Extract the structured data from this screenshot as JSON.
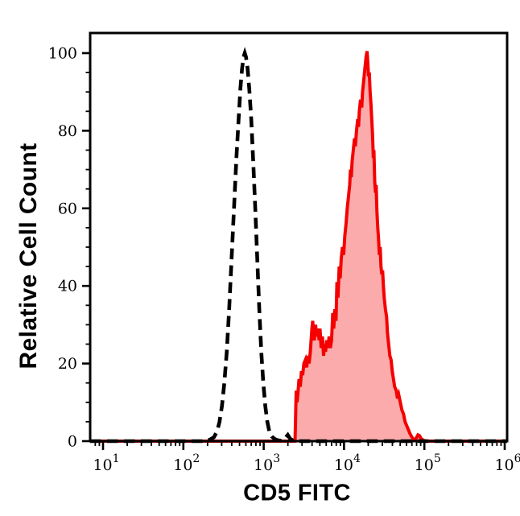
{
  "colors": {
    "background": "#ffffff",
    "axis": "#000000",
    "stained_line": "#f40000",
    "stained_fill": "#fbabab",
    "control_line": "#000000"
  },
  "chart_data": {
    "type": "area",
    "subtype": "flow-cytometry-histogram-overlay",
    "title": "",
    "xlabel": "CD5 FITC",
    "ylabel": "Relative Cell Count",
    "x_axis": {
      "scale": "log10",
      "min_exponent": 1,
      "max_exponent": 6,
      "tick_base": "10",
      "tick_exponents": [
        1,
        2,
        3,
        4,
        5,
        6
      ],
      "minor_tick_multiples": [
        2,
        3,
        4,
        5,
        6,
        7,
        8,
        9
      ]
    },
    "y_axis": {
      "min": 0,
      "max": 100,
      "major_ticks": [
        0,
        20,
        40,
        60,
        80,
        100
      ],
      "minor_tick_step": 5
    },
    "grid": "off",
    "legend": "none",
    "series": [
      {
        "name": "cd5-fitc-stained",
        "line_style": "solid",
        "line_color": "#f40000",
        "fill_color": "#fbabab",
        "line_width": 4,
        "peak_x_log10": 4.29,
        "peak_y": 100,
        "points": [
          [
            0.84,
            0
          ],
          [
            3.39,
            0
          ],
          [
            3.395,
            4
          ],
          [
            3.4,
            9
          ],
          [
            3.405,
            13
          ],
          [
            3.415,
            10
          ],
          [
            3.425,
            12
          ],
          [
            3.44,
            16
          ],
          [
            3.455,
            14
          ],
          [
            3.47,
            18
          ],
          [
            3.485,
            17
          ],
          [
            3.5,
            20
          ],
          [
            3.52,
            21
          ],
          [
            3.535,
            19
          ],
          [
            3.55,
            22
          ],
          [
            3.565,
            20
          ],
          [
            3.58,
            23
          ],
          [
            3.6,
            29
          ],
          [
            3.61,
            31
          ],
          [
            3.62,
            27
          ],
          [
            3.63,
            26
          ],
          [
            3.645,
            30
          ],
          [
            3.66,
            27
          ],
          [
            3.675,
            29
          ],
          [
            3.69,
            26
          ],
          [
            3.7,
            29
          ],
          [
            3.715,
            24
          ],
          [
            3.73,
            27
          ],
          [
            3.745,
            22
          ],
          [
            3.755,
            25
          ],
          [
            3.77,
            23
          ],
          [
            3.785,
            26
          ],
          [
            3.8,
            24
          ],
          [
            3.815,
            27
          ],
          [
            3.83,
            24
          ],
          [
            3.845,
            26
          ],
          [
            3.86,
            33
          ],
          [
            3.872,
            29
          ],
          [
            3.885,
            34
          ],
          [
            3.9,
            31
          ],
          [
            3.912,
            41
          ],
          [
            3.925,
            37
          ],
          [
            3.94,
            45
          ],
          [
            3.952,
            42
          ],
          [
            3.965,
            47
          ],
          [
            3.98,
            50
          ],
          [
            3.995,
            48
          ],
          [
            4.01,
            53
          ],
          [
            4.025,
            56
          ],
          [
            4.04,
            60
          ],
          [
            4.055,
            63
          ],
          [
            4.07,
            66
          ],
          [
            4.08,
            70
          ],
          [
            4.09,
            68
          ],
          [
            4.1,
            72
          ],
          [
            4.115,
            75
          ],
          [
            4.13,
            78
          ],
          [
            4.14,
            76
          ],
          [
            4.155,
            80
          ],
          [
            4.17,
            83
          ],
          [
            4.18,
            81
          ],
          [
            4.19,
            85
          ],
          [
            4.205,
            88
          ],
          [
            4.22,
            86
          ],
          [
            4.23,
            90
          ],
          [
            4.245,
            93
          ],
          [
            4.26,
            96
          ],
          [
            4.275,
            99
          ],
          [
            4.287,
            100.5
          ],
          [
            4.295,
            98
          ],
          [
            4.305,
            94
          ],
          [
            4.315,
            95
          ],
          [
            4.325,
            90
          ],
          [
            4.335,
            87
          ],
          [
            4.345,
            83
          ],
          [
            4.355,
            79
          ],
          [
            4.365,
            73
          ],
          [
            4.372,
            75
          ],
          [
            4.382,
            67
          ],
          [
            4.392,
            64
          ],
          [
            4.4,
            66
          ],
          [
            4.41,
            59
          ],
          [
            4.42,
            55
          ],
          [
            4.43,
            52
          ],
          [
            4.44,
            48
          ],
          [
            4.45,
            50
          ],
          [
            4.46,
            45
          ],
          [
            4.47,
            43
          ],
          [
            4.48,
            44
          ],
          [
            4.49,
            40
          ],
          [
            4.5,
            37
          ],
          [
            4.515,
            34
          ],
          [
            4.53,
            32
          ],
          [
            4.54,
            28
          ],
          [
            4.555,
            25
          ],
          [
            4.57,
            22
          ],
          [
            4.585,
            21
          ],
          [
            4.6,
            18
          ],
          [
            4.615,
            16
          ],
          [
            4.63,
            14
          ],
          [
            4.65,
            13
          ],
          [
            4.665,
            11
          ],
          [
            4.68,
            12
          ],
          [
            4.7,
            10
          ],
          [
            4.72,
            8
          ],
          [
            4.74,
            7
          ],
          [
            4.76,
            5
          ],
          [
            4.78,
            4
          ],
          [
            4.8,
            3
          ],
          [
            4.82,
            2
          ],
          [
            4.84,
            1.2
          ],
          [
            4.86,
            0.6
          ],
          [
            4.88,
            0.3
          ],
          [
            4.9,
            0.8
          ],
          [
            4.92,
            1.6
          ],
          [
            4.94,
            1.4
          ],
          [
            4.96,
            0.6
          ],
          [
            4.99,
            0.2
          ],
          [
            5.02,
            0
          ],
          [
            6.03,
            0
          ]
        ]
      },
      {
        "name": "unstained-control",
        "line_style": "dashed",
        "line_color": "#000000",
        "fill_color": "none",
        "line_width": 4.6,
        "dash_pattern": [
          13.5,
          7.5
        ],
        "peak_x_log10": 2.765,
        "peak_y": 100,
        "points": [
          [
            0.84,
            0
          ],
          [
            2.28,
            0
          ],
          [
            2.33,
            0.4
          ],
          [
            2.38,
            1
          ],
          [
            2.42,
            2.5
          ],
          [
            2.45,
            5
          ],
          [
            2.48,
            9
          ],
          [
            2.51,
            15
          ],
          [
            2.54,
            23
          ],
          [
            2.57,
            34
          ],
          [
            2.6,
            47
          ],
          [
            2.63,
            60
          ],
          [
            2.66,
            73
          ],
          [
            2.69,
            84
          ],
          [
            2.71,
            91
          ],
          [
            2.73,
            96
          ],
          [
            2.75,
            99
          ],
          [
            2.765,
            100
          ],
          [
            2.78,
            99
          ],
          [
            2.8,
            96
          ],
          [
            2.82,
            91
          ],
          [
            2.845,
            83
          ],
          [
            2.87,
            72
          ],
          [
            2.895,
            60
          ],
          [
            2.92,
            47
          ],
          [
            2.945,
            34
          ],
          [
            2.97,
            23
          ],
          [
            2.995,
            15
          ],
          [
            3.02,
            9
          ],
          [
            3.045,
            5
          ],
          [
            3.07,
            2.5
          ],
          [
            3.1,
            1.2
          ],
          [
            3.14,
            0.5
          ],
          [
            3.18,
            0.2
          ],
          [
            3.22,
            0.1
          ],
          [
            3.26,
            0.6
          ],
          [
            3.3,
            1.6
          ],
          [
            3.33,
            0.6
          ],
          [
            3.37,
            0.1
          ],
          [
            3.42,
            0
          ],
          [
            6.03,
            0
          ]
        ]
      }
    ]
  }
}
